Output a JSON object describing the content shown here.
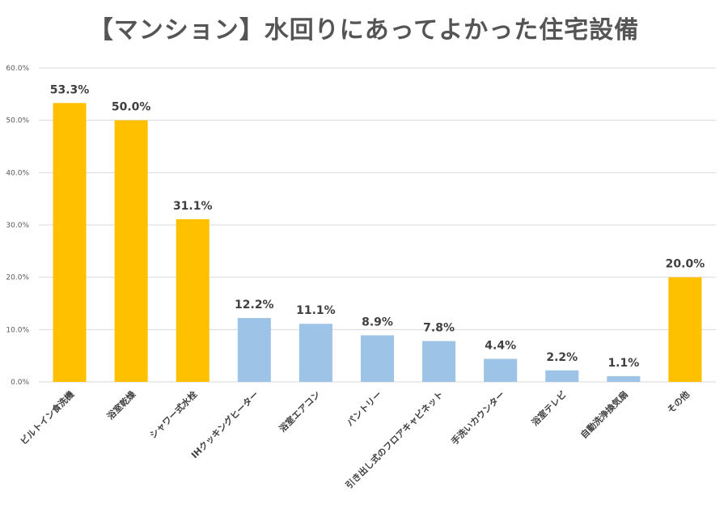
{
  "chart_data": {
    "type": "bar",
    "title": "【マンション】水回りにあってよかった住宅設備",
    "xlabel": "",
    "ylabel": "",
    "ylim": [
      0,
      60
    ],
    "yticks": [
      0,
      10,
      20,
      30,
      40,
      50,
      60
    ],
    "ytick_labels": [
      "0.0%",
      "10.0%",
      "20.0%",
      "30.0%",
      "40.0%",
      "50.0%",
      "60.0%"
    ],
    "grid": true,
    "categories": [
      "ビルトイン食洗機",
      "浴室乾燥",
      "シャワー式水栓",
      "IHクッキングヒーター",
      "浴室エアコン",
      "パントリー",
      "引き出し式のフロアキャビネット",
      "手洗いカウンター",
      "浴室テレビ",
      "自動洗浄換気扇",
      "その他"
    ],
    "values": [
      53.3,
      50.0,
      31.1,
      12.2,
      11.1,
      8.9,
      7.8,
      4.4,
      2.2,
      1.1,
      20.0
    ],
    "value_labels": [
      "53.3%",
      "50.0%",
      "31.1%",
      "12.2%",
      "11.1%",
      "8.9%",
      "7.8%",
      "4.4%",
      "2.2%",
      "1.1%",
      "20.0%"
    ],
    "bar_colors": [
      "#FFC000",
      "#FFC000",
      "#FFC000",
      "#9DC3E6",
      "#9DC3E6",
      "#9DC3E6",
      "#9DC3E6",
      "#9DC3E6",
      "#9DC3E6",
      "#9DC3E6",
      "#FFC000"
    ],
    "colors": {
      "highlight": "#FFC000",
      "normal": "#9DC3E6",
      "grid": "#D9D9D9",
      "text": "#404040"
    }
  }
}
